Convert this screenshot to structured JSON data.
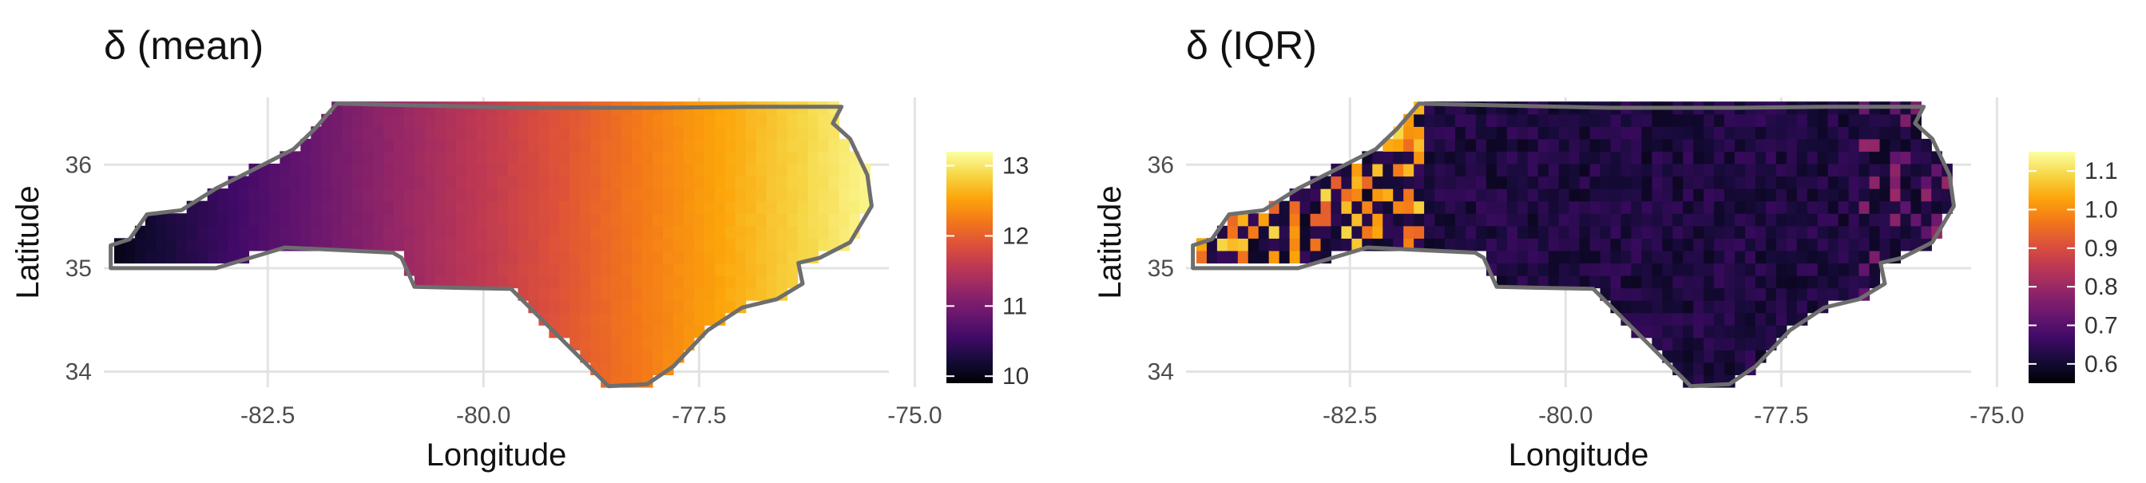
{
  "chart_data": [
    {
      "type": "heatmap",
      "title": "δ (mean)",
      "xlabel": "Longitude",
      "ylabel": "Latitude",
      "xlim": [
        -84.4,
        -75.3
      ],
      "ylim": [
        33.85,
        36.65
      ],
      "x_ticks": [
        -82.5,
        -80.0,
        -77.5,
        -75.0
      ],
      "x_tick_labels": [
        "-82.5",
        "-80.0",
        "-77.5",
        "-75.0"
      ],
      "y_ticks": [
        34,
        35,
        36
      ],
      "y_tick_labels": [
        "34",
        "35",
        "36"
      ],
      "color_scale": {
        "name": "inferno",
        "min": 9.9,
        "max": 13.2,
        "ticks": [
          10,
          11,
          12,
          13
        ],
        "tick_labels": [
          "10",
          "11",
          "12",
          "13"
        ]
      },
      "gradient_direction": "west-to-east",
      "value_at_west": 10.0,
      "value_at_east": 13.1,
      "grid": true,
      "legend_position": "right"
    },
    {
      "type": "heatmap",
      "title": "δ (IQR)",
      "xlabel": "Longitude",
      "ylabel": "Latitude",
      "xlim": [
        -84.4,
        -75.3
      ],
      "ylim": [
        33.85,
        36.65
      ],
      "x_ticks": [
        -82.5,
        -80.0,
        -77.5,
        -75.0
      ],
      "x_tick_labels": [
        "-82.5",
        "-80.0",
        "-77.5",
        "-75.0"
      ],
      "y_ticks": [
        34,
        35,
        36
      ],
      "y_tick_labels": [
        "34",
        "35",
        "36"
      ],
      "color_scale": {
        "name": "inferno",
        "min": 0.55,
        "max": 1.15,
        "ticks": [
          0.6,
          0.7,
          0.8,
          0.9,
          1.0,
          1.1
        ],
        "tick_labels": [
          "0.6",
          "0.7",
          "0.8",
          "0.9",
          "1.0",
          "1.1"
        ]
      },
      "typical_value": 0.62,
      "mountain_region_values": "0.75-1.1 (higher in far west)",
      "grid": true,
      "legend_position": "right"
    }
  ]
}
